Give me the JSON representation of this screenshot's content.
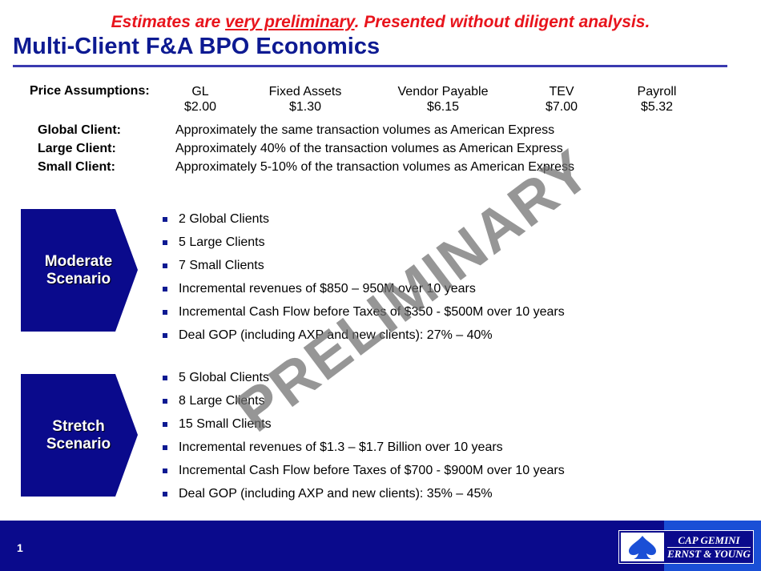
{
  "header": {
    "warning_pre": "Estimates are ",
    "warning_underlined": "very preliminary",
    "warning_post": ".  Presented without diligent analysis.",
    "title": "Multi-Client F&A BPO Economics"
  },
  "price_assumptions": {
    "label": "Price Assumptions:",
    "items": [
      {
        "name": "GL",
        "price": "$2.00"
      },
      {
        "name": "Fixed Assets",
        "price": "$1.30"
      },
      {
        "name": "Vendor Payable",
        "price": "$6.15"
      },
      {
        "name": "TEV",
        "price": "$7.00"
      },
      {
        "name": "Payroll",
        "price": "$5.32"
      }
    ]
  },
  "clients": [
    {
      "name": "Global Client:",
      "description": "Approximately the same transaction volumes as American Express"
    },
    {
      "name": "Large Client:",
      "description": "Approximately 40% of the transaction volumes as American Express"
    },
    {
      "name": "Small Client:",
      "description": "Approximately 5-10% of the transaction volumes as American Express"
    }
  ],
  "scenarios": [
    {
      "label_line1": "Moderate",
      "label_line2": "Scenario",
      "bullets": [
        "2 Global Clients",
        "5 Large Clients",
        "7 Small Clients",
        "Incremental revenues of $850 – 950M over 10 years",
        "Incremental Cash Flow before Taxes of $350 - $500M over 10 years",
        "Deal GOP (including AXP and new clients):  27% – 40%"
      ]
    },
    {
      "label_line1": "Stretch",
      "label_line2": "Scenario",
      "bullets": [
        "5 Global Clients",
        "8 Large Clients",
        "15 Small Clients",
        "Incremental revenues of $1.3 – $1.7 Billion over 10 years",
        "Incremental Cash Flow before Taxes of $700 - $900M over 10 years",
        "Deal GOP (including AXP and new clients):  35% – 45%"
      ]
    }
  ],
  "watermark": "PRELIMINARY",
  "footer": {
    "page_number": "1",
    "logo_line1": "CAP GEMINI",
    "logo_line2": "ERNST & YOUNG"
  },
  "colors": {
    "title": "#0d1a92",
    "warning": "#e8141c",
    "chevron": "#0a0a8c",
    "footer": "#0a0a8c"
  }
}
